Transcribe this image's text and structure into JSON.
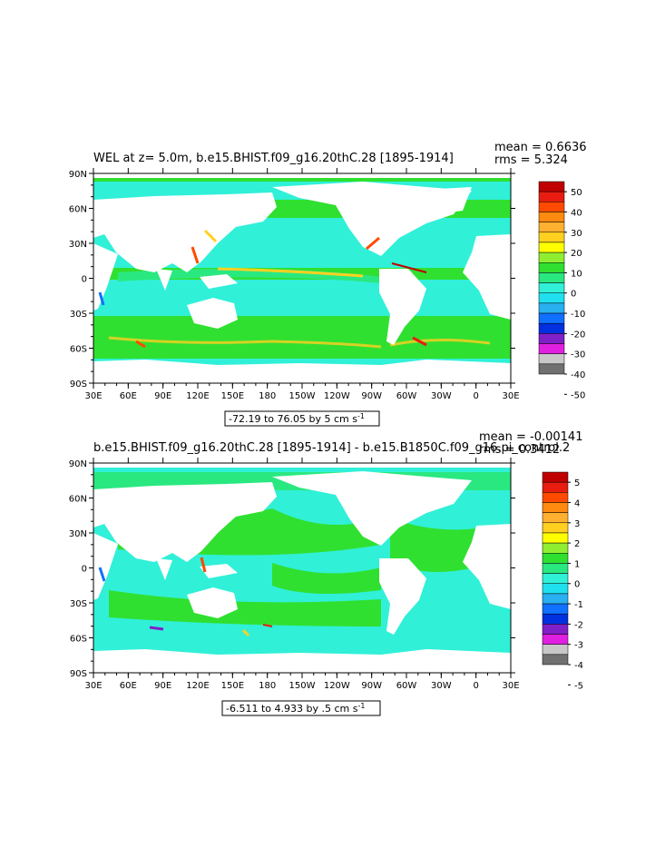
{
  "panels": [
    {
      "title": "WEL at z=    5.0m, b.e15.BHIST.f09_g16.20thC.28 [1895-1914]",
      "stats": {
        "mean": "mean = 0.6636",
        "rms": "rms = 5.324"
      },
      "range_label": "-72.19 to 76.05 by 5 cm s",
      "range_sup": "-1",
      "lat_labels": [
        "90N",
        "60N",
        "30N",
        "0",
        "30S",
        "60S",
        "90S"
      ],
      "lon_labels": [
        "30E",
        "60E",
        "90E",
        "120E",
        "150E",
        "180",
        "150W",
        "120W",
        "90W",
        "60W",
        "30W",
        "0",
        "30E"
      ],
      "colorbar": {
        "labels": [
          "50",
          "40",
          "30",
          "20",
          "10",
          "0",
          "-10",
          "-20",
          "-30",
          "-40",
          "-50"
        ],
        "colors": [
          "#c00000",
          "#e81c10",
          "#ff4a00",
          "#ff8a10",
          "#ffb030",
          "#ffd020",
          "#ffff00",
          "#90ee30",
          "#30e030",
          "#2ae880",
          "#30f0d8",
          "#20e0f0",
          "#28b0f0",
          "#1070ff",
          "#0030e0",
          "#8020c8",
          "#e020e0",
          "#c8c8c8",
          "#707070"
        ]
      }
    },
    {
      "title": "b.e15.BHIST.f09_g16.20thC.28 [1895-1914] - b.e15.B1850C.f09_g16.pi_control.2",
      "stats": {
        "mean": "mean = -0.00141",
        "rms": "rms = 0.3412"
      },
      "range_label": "-6.511 to 4.933 by .5 cm s",
      "range_sup": "-1",
      "lat_labels": [
        "90N",
        "60N",
        "30N",
        "0",
        "30S",
        "60S",
        "90S"
      ],
      "lon_labels": [
        "30E",
        "60E",
        "90E",
        "120E",
        "150E",
        "180",
        "150W",
        "120W",
        "90W",
        "60W",
        "30W",
        "0",
        "30E"
      ],
      "colorbar": {
        "labels": [
          "5",
          "4",
          "3",
          "2",
          "1",
          "0",
          "-1",
          "-2",
          "-3",
          "-4",
          "-5"
        ],
        "colors": [
          "#c00000",
          "#e81c10",
          "#ff4a00",
          "#ff8a10",
          "#ffb030",
          "#ffd020",
          "#ffff00",
          "#90ee30",
          "#30e030",
          "#2ae880",
          "#30f0d8",
          "#20e0f0",
          "#28b0f0",
          "#1070ff",
          "#0030e0",
          "#8020c8",
          "#e020e0",
          "#c8c8c8",
          "#707070"
        ]
      }
    }
  ],
  "field_colors": {
    "land": "#ffffff",
    "positive": "#30e030",
    "weak": "#2ae880",
    "negative": "#30f0d8",
    "strong_pos": "#ffd020",
    "strong_neg": "#1070ff"
  }
}
